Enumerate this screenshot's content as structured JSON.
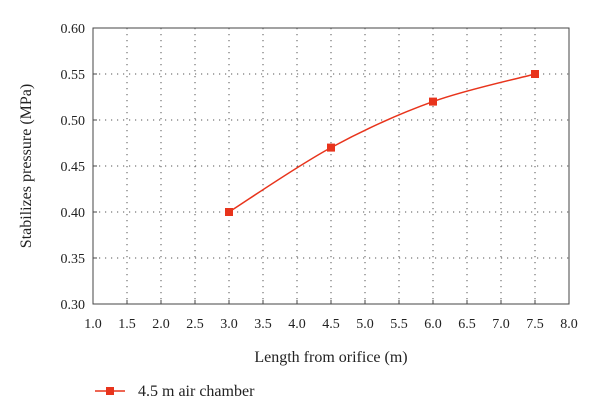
{
  "chart_data": {
    "type": "line",
    "xlabel": "Length from orifice (m)",
    "ylabel": "Stabilizes pressure (MPa)",
    "xlim": [
      1.0,
      8.0
    ],
    "ylim": [
      0.3,
      0.6
    ],
    "x_ticks": [
      "1.0",
      "1.5",
      "2.0",
      "2.5",
      "3.0",
      "3.5",
      "4.0",
      "4.5",
      "5.0",
      "5.5",
      "6.0",
      "6.5",
      "7.0",
      "7.5",
      "8.0"
    ],
    "y_ticks": [
      "0.30",
      "0.35",
      "0.40",
      "0.45",
      "0.50",
      "0.55",
      "0.60"
    ],
    "grid": true,
    "legend_position": "bottom-left",
    "series": [
      {
        "name": "4.5 m air chamber",
        "color": "#e8341c",
        "marker": "square",
        "x": [
          3.0,
          4.5,
          6.0,
          7.5
        ],
        "y": [
          0.4,
          0.47,
          0.52,
          0.55
        ]
      }
    ]
  }
}
